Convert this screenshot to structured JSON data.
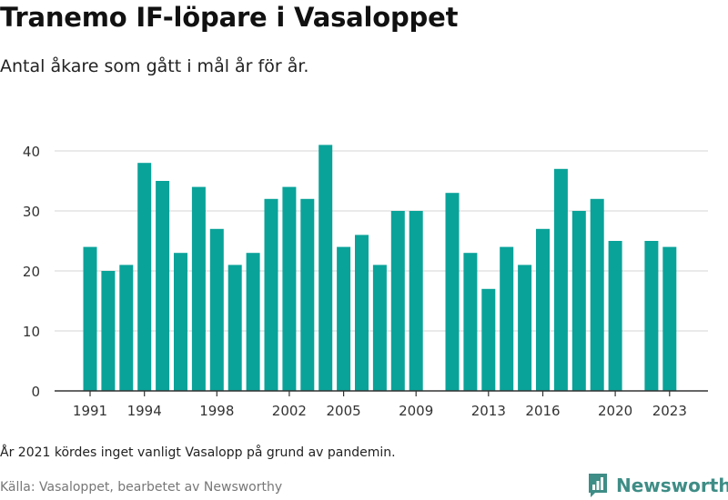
{
  "header": {
    "title": "Tranemo IF-löpare i Vasaloppet",
    "subtitle": "Antal åkare som gått i mål år för år."
  },
  "footer": {
    "note": "År 2021 kördes inget vanligt Vasalopp på grund av pandemin.",
    "source": "Källa: Vasaloppet, bearbetet av Newsworthy",
    "brand": "Newsworthy",
    "brand_icon": "bar-chart-logo-icon"
  },
  "colors": {
    "bar": "#0aa39a",
    "brand": "#3e8d86",
    "grid": "#dddddd",
    "axis": "#333333"
  },
  "chart_data": {
    "type": "bar",
    "title": "Tranemo IF-löpare i Vasaloppet",
    "subtitle": "Antal åkare som gått i mål år för år.",
    "categories": [
      1991,
      1992,
      1993,
      1994,
      1995,
      1996,
      1997,
      1998,
      1999,
      2000,
      2001,
      2002,
      2003,
      2004,
      2005,
      2006,
      2007,
      2008,
      2009,
      2010,
      2011,
      2012,
      2013,
      2014,
      2015,
      2016,
      2017,
      2018,
      2019,
      2020,
      2021,
      2022,
      2023
    ],
    "values": [
      24,
      20,
      21,
      38,
      35,
      23,
      34,
      27,
      21,
      23,
      32,
      34,
      32,
      41,
      24,
      26,
      21,
      30,
      30,
      null,
      33,
      23,
      17,
      24,
      21,
      27,
      37,
      30,
      32,
      25,
      null,
      25,
      24
    ],
    "ylim": [
      0,
      40
    ],
    "yticks": [
      0,
      10,
      20,
      30,
      40
    ],
    "xticks": [
      1991,
      1994,
      1998,
      2002,
      2005,
      2009,
      2013,
      2016,
      2020,
      2023
    ],
    "grid": true,
    "legend": "none"
  }
}
